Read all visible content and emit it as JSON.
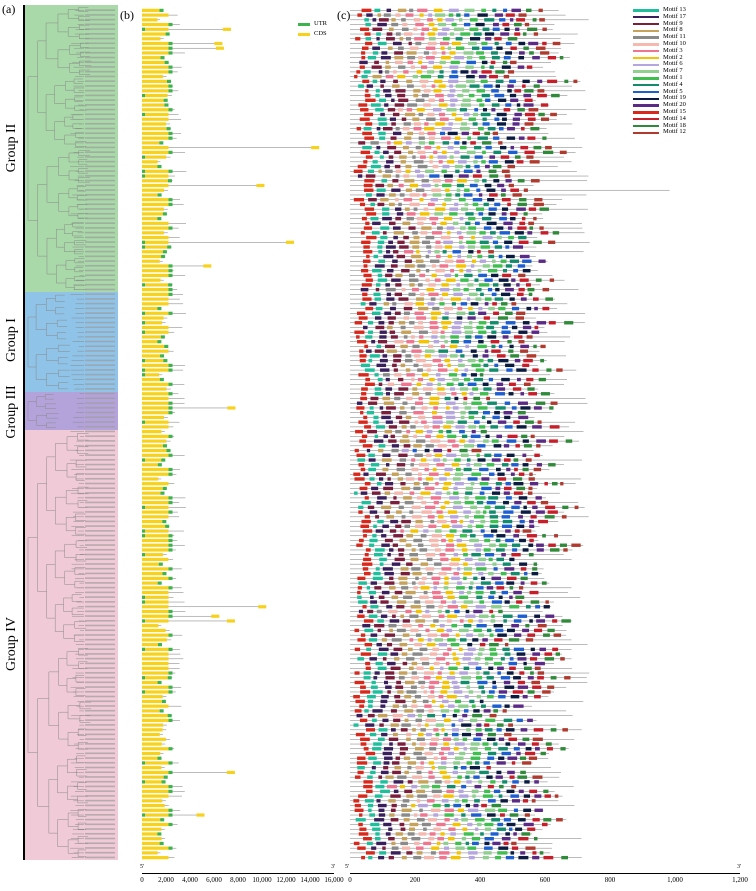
{
  "panels": {
    "a": {
      "label": "(a)"
    },
    "b": {
      "label": "(b)"
    },
    "c": {
      "label": "(c)"
    }
  },
  "groups": [
    {
      "name": "Group II",
      "color": "#a9d8a9"
    },
    {
      "name": "Group I",
      "color": "#8fc3e8"
    },
    {
      "name": "Group III",
      "color": "#b4a3da"
    },
    {
      "name": "Group IV",
      "color": "#f0cad6"
    }
  ],
  "gene_legend": [
    {
      "name": "UTR",
      "color": "#3cb44b"
    },
    {
      "name": "CDS",
      "color": "#f8d21a"
    }
  ],
  "motif_legend": [
    {
      "name": "Motif 13",
      "color": "#1fbf9c"
    },
    {
      "name": "Motif 17",
      "color": "#3a1f5d"
    },
    {
      "name": "Motif 9",
      "color": "#7a1e3c"
    },
    {
      "name": "Motif 8",
      "color": "#c7a25a"
    },
    {
      "name": "Motif 11",
      "color": "#8a8a8a"
    },
    {
      "name": "Motif 10",
      "color": "#f6b9b0"
    },
    {
      "name": "Motif 3",
      "color": "#f0758f"
    },
    {
      "name": "Motif 2",
      "color": "#f5c400"
    },
    {
      "name": "Motif 6",
      "color": "#b6a6e0"
    },
    {
      "name": "Motif 7",
      "color": "#8fcf8f"
    },
    {
      "name": "Motif 1",
      "color": "#3fbf4f"
    },
    {
      "name": "Motif 4",
      "color": "#138c6c"
    },
    {
      "name": "Motif 5",
      "color": "#1d5fd1"
    },
    {
      "name": "Motif 19",
      "color": "#0b1b40"
    },
    {
      "name": "Motif 20",
      "color": "#5b2a86"
    },
    {
      "name": "Motif 15",
      "color": "#d8281c"
    },
    {
      "name": "Motif 14",
      "color": "#c81e2a"
    },
    {
      "name": "Motif 18",
      "color": "#2f8a3a"
    },
    {
      "name": "Motif 12",
      "color": "#b03a2e"
    }
  ],
  "gene_axis": {
    "ticks": [
      "0",
      "2,000",
      "4,000",
      "6,000",
      "8,000",
      "10,000",
      "12,000",
      "14,000",
      "16,000"
    ],
    "start": "5'",
    "end": "3'"
  },
  "motif_axis": {
    "ticks": [
      "0",
      "200",
      "400",
      "600",
      "800",
      "1,000",
      "1,200"
    ],
    "start": "5'",
    "end": "3'"
  }
}
